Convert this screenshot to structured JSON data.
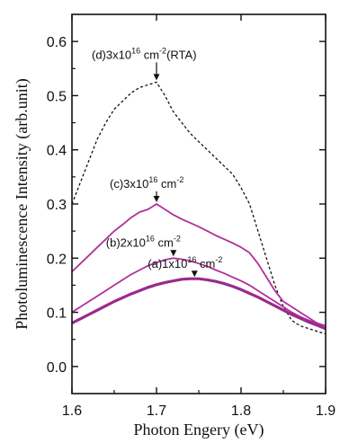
{
  "chart_data": {
    "type": "line",
    "title": "",
    "xlabel": "Photon Engery (eV)",
    "ylabel": "Photoluminescence Intensity (arb.unit)",
    "xlim": [
      1.6,
      1.9
    ],
    "ylim": [
      -0.05,
      0.65
    ],
    "xticks": [
      1.6,
      1.7,
      1.8,
      1.9
    ],
    "yticks": [
      0.0,
      0.1,
      0.2,
      0.3,
      0.4,
      0.5,
      0.6
    ],
    "xtick_labels": [
      "1.6",
      "1.7",
      "1.8",
      "1.9"
    ],
    "ytick_labels": [
      "0.0",
      "0.1",
      "0.2",
      "0.3",
      "0.4",
      "0.5",
      "0.6"
    ],
    "grid": false,
    "legend": "none",
    "series": [
      {
        "label_parts": [
          "(d)3x10",
          "16",
          " cm",
          "-2",
          "(RTA)"
        ],
        "color": "#111111",
        "style": "dashed",
        "peak": [
          1.7,
          0.525
        ],
        "x": [
          1.6,
          1.61,
          1.62,
          1.63,
          1.64,
          1.65,
          1.66,
          1.67,
          1.68,
          1.69,
          1.7,
          1.71,
          1.72,
          1.73,
          1.74,
          1.75,
          1.76,
          1.77,
          1.78,
          1.79,
          1.8,
          1.81,
          1.82,
          1.83,
          1.84,
          1.85,
          1.86,
          1.87,
          1.88,
          1.89,
          1.9
        ],
        "values": [
          0.3,
          0.34,
          0.38,
          0.42,
          0.45,
          0.475,
          0.49,
          0.505,
          0.515,
          0.52,
          0.525,
          0.5,
          0.47,
          0.45,
          0.43,
          0.415,
          0.4,
          0.385,
          0.37,
          0.355,
          0.33,
          0.3,
          0.25,
          0.2,
          0.15,
          0.11,
          0.085,
          0.075,
          0.07,
          0.065,
          0.06
        ]
      },
      {
        "label_parts": [
          "(c)3x10",
          "16",
          " cm",
          "-2",
          ""
        ],
        "color": "#b0309a",
        "style": "solid",
        "peak": [
          1.7,
          0.3
        ],
        "x": [
          1.6,
          1.61,
          1.62,
          1.63,
          1.64,
          1.65,
          1.66,
          1.67,
          1.68,
          1.69,
          1.7,
          1.71,
          1.72,
          1.73,
          1.74,
          1.75,
          1.76,
          1.77,
          1.78,
          1.79,
          1.8,
          1.81,
          1.82,
          1.83,
          1.84,
          1.85,
          1.86,
          1.87,
          1.88,
          1.89,
          1.9
        ],
        "values": [
          0.175,
          0.19,
          0.205,
          0.22,
          0.235,
          0.25,
          0.262,
          0.275,
          0.285,
          0.29,
          0.3,
          0.29,
          0.28,
          0.272,
          0.265,
          0.258,
          0.25,
          0.242,
          0.235,
          0.228,
          0.22,
          0.21,
          0.19,
          0.165,
          0.14,
          0.12,
          0.11,
          0.1,
          0.09,
          0.08,
          0.07
        ]
      },
      {
        "label_parts": [
          "(b)2x10",
          "16",
          " cm",
          "-2",
          ""
        ],
        "color": "#b0309a",
        "style": "solid",
        "peak": [
          1.72,
          0.2
        ],
        "x": [
          1.6,
          1.61,
          1.62,
          1.63,
          1.64,
          1.65,
          1.66,
          1.67,
          1.68,
          1.69,
          1.7,
          1.71,
          1.72,
          1.73,
          1.74,
          1.75,
          1.76,
          1.77,
          1.78,
          1.79,
          1.8,
          1.81,
          1.82,
          1.83,
          1.84,
          1.85,
          1.86,
          1.87,
          1.88,
          1.89,
          1.9
        ],
        "values": [
          0.1,
          0.11,
          0.12,
          0.13,
          0.14,
          0.15,
          0.16,
          0.17,
          0.178,
          0.186,
          0.192,
          0.197,
          0.2,
          0.198,
          0.195,
          0.19,
          0.185,
          0.178,
          0.172,
          0.165,
          0.158,
          0.15,
          0.14,
          0.13,
          0.12,
          0.11,
          0.1,
          0.092,
          0.085,
          0.08,
          0.075
        ]
      },
      {
        "label_parts": [
          "(a)1x10",
          "16",
          " cm",
          "-2",
          ""
        ],
        "color": "#9a2a8c",
        "style": "solid-thick",
        "peak": [
          1.745,
          0.162
        ],
        "x": [
          1.6,
          1.61,
          1.62,
          1.63,
          1.64,
          1.65,
          1.66,
          1.67,
          1.68,
          1.69,
          1.7,
          1.71,
          1.72,
          1.73,
          1.74,
          1.75,
          1.76,
          1.77,
          1.78,
          1.79,
          1.8,
          1.81,
          1.82,
          1.83,
          1.84,
          1.85,
          1.86,
          1.87,
          1.88,
          1.89,
          1.9
        ],
        "values": [
          0.08,
          0.088,
          0.096,
          0.104,
          0.112,
          0.12,
          0.127,
          0.134,
          0.14,
          0.146,
          0.151,
          0.155,
          0.158,
          0.161,
          0.162,
          0.162,
          0.16,
          0.157,
          0.153,
          0.148,
          0.142,
          0.135,
          0.128,
          0.12,
          0.112,
          0.104,
          0.096,
          0.089,
          0.082,
          0.076,
          0.07
        ]
      }
    ]
  }
}
